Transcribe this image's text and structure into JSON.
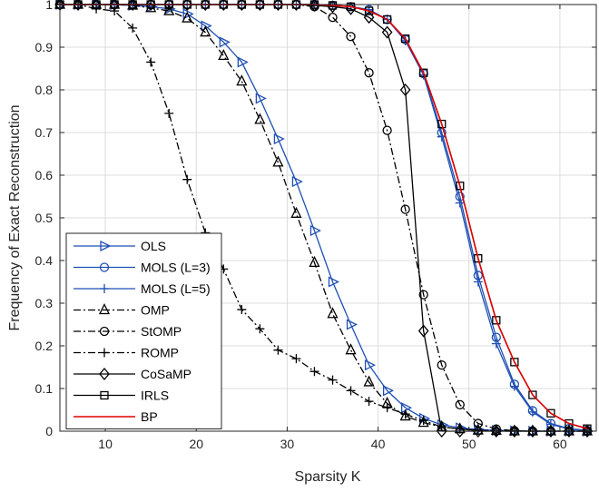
{
  "chart_data": {
    "type": "line",
    "title": "",
    "xlabel": "Sparsity K",
    "ylabel": "Frequency of Exact Reconstruction",
    "xlim": [
      5,
      64
    ],
    "ylim": [
      0,
      1
    ],
    "xticks": [
      10,
      20,
      30,
      40,
      50,
      60
    ],
    "yticks": [
      0,
      0.1,
      0.2,
      0.3,
      0.4,
      0.5,
      0.6,
      0.7,
      0.8,
      0.9,
      1
    ],
    "grid": true,
    "legend_position": "lower-left",
    "series": [
      {
        "name": "OLS",
        "color": "#1f4fb4",
        "dash": "solid",
        "marker": "triangle-right",
        "x": [
          5,
          7,
          9,
          11,
          13,
          15,
          17,
          19,
          21,
          23,
          25,
          27,
          29,
          31,
          33,
          35,
          37,
          39,
          41,
          43,
          45,
          47,
          49,
          51,
          53,
          55,
          57,
          59,
          61,
          63
        ],
        "y": [
          1,
          1,
          1,
          1,
          0.998,
          0.995,
          0.99,
          0.978,
          0.95,
          0.912,
          0.865,
          0.78,
          0.685,
          0.585,
          0.47,
          0.35,
          0.25,
          0.155,
          0.095,
          0.055,
          0.03,
          0.015,
          0.008,
          0.004,
          0.002,
          0.001,
          0,
          0,
          0,
          0
        ]
      },
      {
        "name": "MOLS (L=3)",
        "color": "#1f4fb4",
        "dash": "solid",
        "marker": "circle",
        "x": [
          5,
          7,
          9,
          11,
          13,
          15,
          17,
          19,
          21,
          23,
          25,
          27,
          29,
          31,
          33,
          35,
          37,
          39,
          41,
          43,
          45,
          47,
          49,
          51,
          53,
          55,
          57,
          59,
          61,
          63
        ],
        "y": [
          1,
          1,
          1,
          1,
          1,
          1,
          1,
          1,
          1,
          1,
          1,
          1,
          1,
          1,
          1,
          0.998,
          0.995,
          0.988,
          0.965,
          0.918,
          0.838,
          0.7,
          0.55,
          0.365,
          0.22,
          0.11,
          0.048,
          0.018,
          0.006,
          0.002
        ]
      },
      {
        "name": "MOLS (L=5)",
        "color": "#1f4fb4",
        "dash": "solid",
        "marker": "plus",
        "x": [
          5,
          7,
          9,
          11,
          13,
          15,
          17,
          19,
          21,
          23,
          25,
          27,
          29,
          31,
          33,
          35,
          37,
          39,
          41,
          43,
          45,
          47,
          49,
          51,
          53,
          55,
          57,
          59,
          61,
          63
        ],
        "y": [
          1,
          1,
          1,
          1,
          1,
          1,
          1,
          1,
          1,
          1,
          1,
          1,
          1,
          1,
          1,
          0.998,
          0.995,
          0.988,
          0.965,
          0.915,
          0.835,
          0.69,
          0.535,
          0.35,
          0.205,
          0.105,
          0.045,
          0.016,
          0.005,
          0.001
        ]
      },
      {
        "name": "OMP",
        "color": "#000000",
        "dash": "dashdot",
        "marker": "triangle-up",
        "x": [
          5,
          7,
          9,
          11,
          13,
          15,
          17,
          19,
          21,
          23,
          25,
          27,
          29,
          31,
          33,
          35,
          37,
          39,
          41,
          43,
          45,
          47,
          49,
          51,
          53,
          55,
          57,
          59,
          61,
          63
        ],
        "y": [
          1,
          1,
          1,
          1,
          0.998,
          0.992,
          0.985,
          0.968,
          0.935,
          0.88,
          0.82,
          0.73,
          0.63,
          0.51,
          0.395,
          0.275,
          0.19,
          0.115,
          0.065,
          0.035,
          0.02,
          0.01,
          0.005,
          0.002,
          0.001,
          0,
          0,
          0,
          0,
          0
        ]
      },
      {
        "name": "StOMP",
        "color": "#000000",
        "dash": "dashdot",
        "marker": "circle",
        "x": [
          5,
          7,
          9,
          11,
          13,
          15,
          17,
          19,
          21,
          23,
          25,
          27,
          29,
          31,
          33,
          35,
          37,
          39,
          41,
          43,
          45,
          47,
          49,
          51,
          53,
          55,
          57,
          59,
          61,
          63
        ],
        "y": [
          1,
          1,
          1,
          1,
          1,
          1,
          1,
          1,
          1,
          1,
          1,
          1,
          1,
          1,
          0.995,
          0.97,
          0.925,
          0.84,
          0.705,
          0.52,
          0.32,
          0.155,
          0.062,
          0.018,
          0.005,
          0.001,
          0,
          0,
          0,
          0
        ]
      },
      {
        "name": "ROMP",
        "color": "#000000",
        "dash": "dashdot",
        "marker": "plus",
        "x": [
          5,
          7,
          9,
          11,
          13,
          15,
          17,
          19,
          21,
          23,
          25,
          27,
          29,
          31,
          33,
          35,
          37,
          39,
          41,
          43,
          45,
          47,
          49,
          51,
          53,
          55,
          57,
          59,
          61,
          63
        ],
        "y": [
          1,
          1,
          0.99,
          0.985,
          0.945,
          0.865,
          0.745,
          0.59,
          0.465,
          0.38,
          0.285,
          0.24,
          0.19,
          0.17,
          0.14,
          0.12,
          0.095,
          0.07,
          0.055,
          0.04,
          0.025,
          0.01,
          0.005,
          0.002,
          0,
          0,
          0,
          0,
          0,
          0
        ]
      },
      {
        "name": "CoSaMP",
        "color": "#000000",
        "dash": "solid",
        "marker": "diamond",
        "x": [
          5,
          7,
          9,
          11,
          13,
          15,
          17,
          19,
          21,
          23,
          25,
          27,
          29,
          31,
          33,
          35,
          37,
          39,
          41,
          43,
          45,
          47,
          49,
          51,
          53,
          55,
          57,
          59,
          61,
          63
        ],
        "y": [
          1,
          1,
          1,
          1,
          1,
          1,
          1,
          1,
          1,
          1,
          1,
          1,
          1,
          1,
          0.998,
          0.995,
          0.99,
          0.97,
          0.935,
          0.8,
          0.235,
          0,
          0,
          0,
          0,
          0,
          0,
          0,
          0,
          0
        ]
      },
      {
        "name": "IRLS",
        "color": "#000000",
        "dash": "solid",
        "marker": "square",
        "x": [
          5,
          7,
          9,
          11,
          13,
          15,
          17,
          19,
          21,
          23,
          25,
          27,
          29,
          31,
          33,
          35,
          37,
          39,
          41,
          43,
          45,
          47,
          49,
          51,
          53,
          55,
          57,
          59,
          61,
          63
        ],
        "y": [
          1,
          1,
          1,
          1,
          1,
          1,
          1,
          1,
          1,
          1,
          1,
          1,
          1,
          1,
          1,
          0.998,
          0.995,
          0.985,
          0.965,
          0.92,
          0.84,
          0.72,
          0.575,
          0.405,
          0.26,
          0.162,
          0.085,
          0.042,
          0.018,
          0.006
        ]
      },
      {
        "name": "BP",
        "color": "#e00000",
        "dash": "solid",
        "marker": "none",
        "x": [
          5,
          7,
          9,
          11,
          13,
          15,
          17,
          19,
          21,
          23,
          25,
          27,
          29,
          31,
          33,
          35,
          37,
          39,
          41,
          43,
          45,
          47,
          49,
          51,
          53,
          55,
          57,
          59,
          61,
          63
        ],
        "y": [
          1,
          1,
          1,
          1,
          1,
          1,
          1,
          1,
          1,
          1,
          1,
          1,
          1,
          1,
          1,
          0.998,
          0.995,
          0.985,
          0.965,
          0.92,
          0.84,
          0.72,
          0.575,
          0.405,
          0.26,
          0.162,
          0.085,
          0.042,
          0.018,
          0.006
        ]
      }
    ]
  }
}
